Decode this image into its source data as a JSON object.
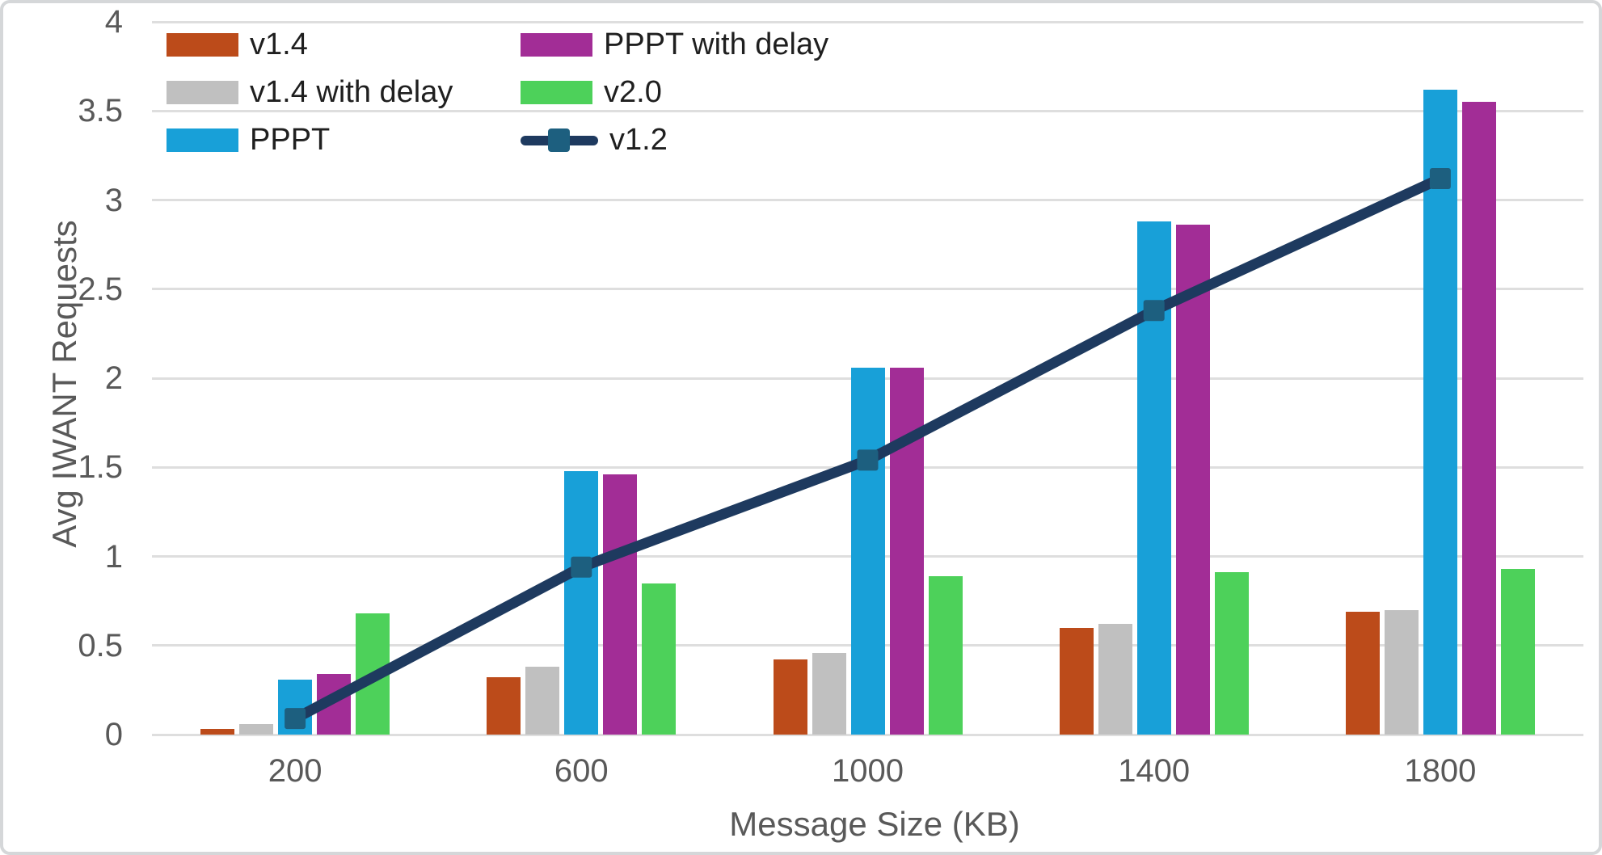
{
  "chart_data": {
    "type": "bar",
    "title": "",
    "xlabel": "Message Size (KB)",
    "ylabel": "Avg IWANT Requests",
    "categories": [
      "200",
      "600",
      "1000",
      "1400",
      "1800"
    ],
    "ylim": [
      0,
      4
    ],
    "ytick_step": 0.5,
    "ytick_labels": [
      "0",
      "0.5",
      "1",
      "1.5",
      "2",
      "2.5",
      "3",
      "3.5",
      "4"
    ],
    "grid": true,
    "legend_position": "inside-top-left",
    "bar_series": [
      {
        "name": "v1.4",
        "color": "#bc4b1a",
        "values": [
          0.03,
          0.32,
          0.42,
          0.6,
          0.69
        ]
      },
      {
        "name": "v1.4 with delay",
        "color": "#c0c0c0",
        "values": [
          0.06,
          0.38,
          0.46,
          0.62,
          0.7
        ]
      },
      {
        "name": "PPPT",
        "color": "#18a0d8",
        "values": [
          0.31,
          1.48,
          2.06,
          2.88,
          3.62
        ]
      },
      {
        "name": "PPPT with delay",
        "color": "#a22d96",
        "values": [
          0.34,
          1.46,
          2.06,
          2.86,
          3.55
        ]
      },
      {
        "name": "v2.0",
        "color": "#4dd15a",
        "values": [
          0.68,
          0.85,
          0.89,
          0.91,
          0.93
        ]
      }
    ],
    "line_series": [
      {
        "name": "v1.2",
        "color": "#1e3a5f",
        "marker_color": "#1d5f7f",
        "marker": "square",
        "values": [
          0.09,
          0.94,
          1.54,
          2.38,
          3.12
        ]
      }
    ],
    "legend_order": [
      "v1.4",
      "v1.4 with delay",
      "PPPT",
      "PPPT with delay",
      "v2.0",
      "v1.2"
    ]
  },
  "style_colors": {
    "gridline": "#dedede",
    "axis_text": "#595959",
    "legend_text": "#1f1f1f",
    "frame_border": "#d5d7d9",
    "background": "#ffffff"
  }
}
